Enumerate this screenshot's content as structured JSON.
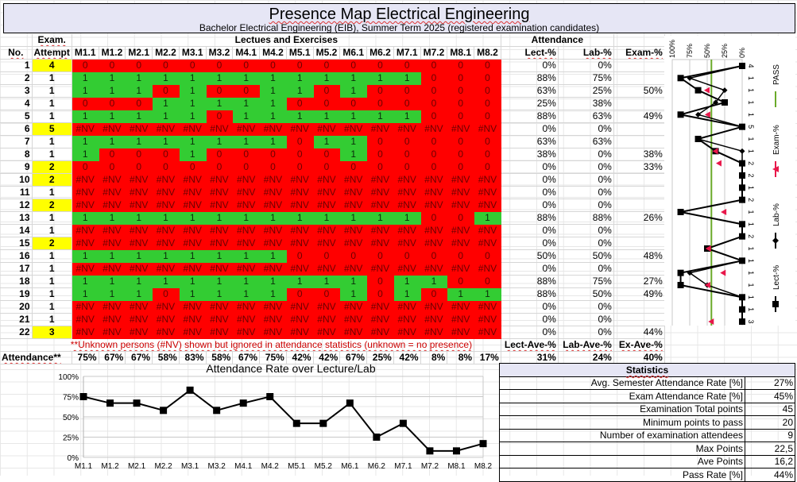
{
  "title": "Presence Map Electrical Engineering",
  "subtitle": "Bachelor Electrical Engineering (EIB), Summer Term 2025 (registered examination candidates)",
  "headers": {
    "no": "No.",
    "exam_top": "Exam.",
    "attempt": "Attempt",
    "group_lectures": "Lectues and Exercises",
    "group_attendance": "Attendance",
    "lect": "Lect-%",
    "lab": "Lab-%",
    "exam": "Exam-%",
    "sessions": [
      "M1.1",
      "M1.2",
      "M2.1",
      "M2.2",
      "M3.1",
      "M3.2",
      "M4.1",
      "M4.2",
      "M5.1",
      "M5.2",
      "M6.1",
      "M6.2",
      "M7.1",
      "M7.2",
      "M8.1",
      "M8.2"
    ]
  },
  "rows": [
    {
      "no": "1",
      "attempt": "4",
      "cells": [
        "0",
        "0",
        "0",
        "0",
        "0",
        "0",
        "0",
        "0",
        "0",
        "0",
        "0",
        "0",
        "0",
        "0",
        "0",
        "0"
      ],
      "lect": "0%",
      "lab": "0%",
      "exam": ""
    },
    {
      "no": "2",
      "attempt": "1",
      "cells": [
        "1",
        "1",
        "1",
        "1",
        "1",
        "1",
        "1",
        "1",
        "1",
        "1",
        "1",
        "1",
        "1",
        "0",
        "0",
        "0"
      ],
      "lect": "88%",
      "lab": "75%",
      "exam": ""
    },
    {
      "no": "3",
      "attempt": "1",
      "cells": [
        "1",
        "1",
        "1",
        "0",
        "1",
        "0",
        "0",
        "1",
        "1",
        "0",
        "1",
        "0",
        "0",
        "0",
        "0",
        "0"
      ],
      "lect": "63%",
      "lab": "25%",
      "exam": "50%"
    },
    {
      "no": "4",
      "attempt": "1",
      "cells": [
        "0",
        "0",
        "0",
        "1",
        "1",
        "1",
        "1",
        "1",
        "0",
        "0",
        "0",
        "0",
        "0",
        "0",
        "0",
        "0"
      ],
      "lect": "25%",
      "lab": "38%",
      "exam": ""
    },
    {
      "no": "5",
      "attempt": "1",
      "cells": [
        "1",
        "1",
        "1",
        "1",
        "1",
        "0",
        "1",
        "1",
        "1",
        "1",
        "1",
        "1",
        "1",
        "0",
        "0",
        "0"
      ],
      "lect": "88%",
      "lab": "63%",
      "exam": "49%"
    },
    {
      "no": "6",
      "attempt": "5",
      "cells": [
        "#NV",
        "#NV",
        "#NV",
        "#NV",
        "#NV",
        "#NV",
        "#NV",
        "#NV",
        "#NV",
        "#NV",
        "#NV",
        "#NV",
        "#NV",
        "#NV",
        "#NV",
        "#NV"
      ],
      "lect": "0%",
      "lab": "0%",
      "exam": ""
    },
    {
      "no": "7",
      "attempt": "1",
      "cells": [
        "1",
        "1",
        "1",
        "1",
        "1",
        "1",
        "1",
        "1",
        "0",
        "1",
        "1",
        "0",
        "0",
        "0",
        "0",
        "0"
      ],
      "lect": "63%",
      "lab": "63%",
      "exam": ""
    },
    {
      "no": "8",
      "attempt": "1",
      "cells": [
        "1",
        "0",
        "0",
        "0",
        "1",
        "0",
        "0",
        "0",
        "0",
        "0",
        "1",
        "0",
        "0",
        "0",
        "0",
        "0"
      ],
      "lect": "38%",
      "lab": "0%",
      "exam": "38%"
    },
    {
      "no": "9",
      "attempt": "2",
      "cells": [
        "0",
        "0",
        "0",
        "0",
        "0",
        "0",
        "0",
        "0",
        "0",
        "0",
        "0",
        "0",
        "0",
        "0",
        "0",
        "0"
      ],
      "lect": "0%",
      "lab": "0%",
      "exam": "33%"
    },
    {
      "no": "10",
      "attempt": "2",
      "cells": [
        "#NV",
        "#NV",
        "#NV",
        "#NV",
        "#NV",
        "#NV",
        "#NV",
        "#NV",
        "#NV",
        "#NV",
        "#NV",
        "#NV",
        "#NV",
        "#NV",
        "#NV",
        "#NV"
      ],
      "lect": "0%",
      "lab": "0%",
      "exam": ""
    },
    {
      "no": "11",
      "attempt": "1",
      "cells": [
        "#NV",
        "#NV",
        "#NV",
        "#NV",
        "#NV",
        "#NV",
        "#NV",
        "#NV",
        "#NV",
        "#NV",
        "#NV",
        "#NV",
        "#NV",
        "#NV",
        "#NV",
        "#NV"
      ],
      "lect": "0%",
      "lab": "0%",
      "exam": ""
    },
    {
      "no": "12",
      "attempt": "2",
      "cells": [
        "#NV",
        "#NV",
        "#NV",
        "#NV",
        "#NV",
        "#NV",
        "#NV",
        "#NV",
        "#NV",
        "#NV",
        "#NV",
        "#NV",
        "#NV",
        "#NV",
        "#NV",
        "#NV"
      ],
      "lect": "0%",
      "lab": "0%",
      "exam": ""
    },
    {
      "no": "13",
      "attempt": "1",
      "cells": [
        "1",
        "1",
        "1",
        "1",
        "1",
        "1",
        "1",
        "1",
        "1",
        "1",
        "1",
        "1",
        "1",
        "0",
        "0",
        "1"
      ],
      "lect": "88%",
      "lab": "88%",
      "exam": "26%"
    },
    {
      "no": "14",
      "attempt": "1",
      "cells": [
        "#NV",
        "#NV",
        "#NV",
        "#NV",
        "#NV",
        "#NV",
        "#NV",
        "#NV",
        "#NV",
        "#NV",
        "#NV",
        "#NV",
        "#NV",
        "#NV",
        "#NV",
        "#NV"
      ],
      "lect": "0%",
      "lab": "0%",
      "exam": ""
    },
    {
      "no": "15",
      "attempt": "2",
      "cells": [
        "#NV",
        "#NV",
        "#NV",
        "#NV",
        "#NV",
        "#NV",
        "#NV",
        "#NV",
        "#NV",
        "#NV",
        "#NV",
        "#NV",
        "#NV",
        "#NV",
        "#NV",
        "#NV"
      ],
      "lect": "0%",
      "lab": "0%",
      "exam": ""
    },
    {
      "no": "16",
      "attempt": "1",
      "cells": [
        "1",
        "1",
        "1",
        "1",
        "1",
        "1",
        "1",
        "1",
        "0",
        "0",
        "0",
        "0",
        "0",
        "0",
        "0",
        "0"
      ],
      "lect": "50%",
      "lab": "50%",
      "exam": "48%"
    },
    {
      "no": "17",
      "attempt": "1",
      "cells": [
        "#NV",
        "#NV",
        "#NV",
        "#NV",
        "#NV",
        "#NV",
        "#NV",
        "#NV",
        "#NV",
        "#NV",
        "#NV",
        "#NV",
        "#NV",
        "#NV",
        "#NV",
        "#NV"
      ],
      "lect": "0%",
      "lab": "0%",
      "exam": ""
    },
    {
      "no": "18",
      "attempt": "1",
      "cells": [
        "1",
        "1",
        "1",
        "1",
        "1",
        "1",
        "1",
        "1",
        "1",
        "1",
        "1",
        "0",
        "1",
        "1",
        "0",
        "0"
      ],
      "lect": "88%",
      "lab": "75%",
      "exam": "27%"
    },
    {
      "no": "19",
      "attempt": "1",
      "cells": [
        "1",
        "1",
        "1",
        "0",
        "1",
        "1",
        "1",
        "1",
        "0",
        "0",
        "1",
        "0",
        "1",
        "0",
        "1",
        "1"
      ],
      "lect": "88%",
      "lab": "50%",
      "exam": "49%"
    },
    {
      "no": "20",
      "attempt": "1",
      "cells": [
        "#NV",
        "#NV",
        "#NV",
        "#NV",
        "#NV",
        "#NV",
        "#NV",
        "#NV",
        "#NV",
        "#NV",
        "#NV",
        "#NV",
        "#NV",
        "#NV",
        "#NV",
        "#NV"
      ],
      "lect": "0%",
      "lab": "0%",
      "exam": ""
    },
    {
      "no": "21",
      "attempt": "1",
      "cells": [
        "#NV",
        "#NV",
        "#NV",
        "#NV",
        "#NV",
        "#NV",
        "#NV",
        "#NV",
        "#NV",
        "#NV",
        "#NV",
        "#NV",
        "#NV",
        "#NV",
        "#NV",
        "#NV"
      ],
      "lect": "0%",
      "lab": "0%",
      "exam": ""
    },
    {
      "no": "22",
      "attempt": "3",
      "cells": [
        "#NV",
        "#NV",
        "#NV",
        "#NV",
        "#NV",
        "#NV",
        "#NV",
        "#NV",
        "#NV",
        "#NV",
        "#NV",
        "#NV",
        "#NV",
        "#NV",
        "#NV",
        "#NV"
      ],
      "lect": "0%",
      "lab": "0%",
      "exam": "44%"
    }
  ],
  "footer": {
    "note": "**Unknown persons (#NV) shown but ignored in attendance statistics (unknown = no presence)",
    "lect_ave_label": "Lect-Ave-%",
    "lab_ave_label": "Lab-Ave-%",
    "ex_ave_label": "Ex-Ave-%",
    "attendance_label": "Attendance**",
    "attendance": [
      "75%",
      "67%",
      "67%",
      "58%",
      "83%",
      "58%",
      "67%",
      "75%",
      "42%",
      "42%",
      "67%",
      "25%",
      "42%",
      "8%",
      "8%",
      "17%"
    ],
    "lect_ave": "31%",
    "lab_ave": "24%",
    "ex_ave": "40%"
  },
  "colors": {
    "present": "#33cc33",
    "absent": "#ff0000",
    "highlight": "#ffff00",
    "title_bg": "#e6e6f5",
    "exam_marker": "#e8174a",
    "pass_line": "#6aaa2a"
  },
  "chart_data": [
    {
      "type": "line",
      "title": "Attendance Rate over Lecture/Lab",
      "categories": [
        "M1.1",
        "M1.2",
        "M2.1",
        "M2.2",
        "M3.1",
        "M3.2",
        "M4.1",
        "M4.2",
        "M5.1",
        "M5.2",
        "M6.1",
        "M6.2",
        "M7.1",
        "M7.2",
        "M8.1",
        "M8.2"
      ],
      "values": [
        75,
        67,
        67,
        58,
        83,
        58,
        67,
        75,
        42,
        42,
        67,
        25,
        42,
        8,
        8,
        17
      ],
      "ylim": [
        0,
        100
      ],
      "yticks": [
        "0%",
        "25%",
        "50%",
        "75%",
        "100%"
      ],
      "xlabel": "",
      "ylabel": "",
      "grid": true
    },
    {
      "type": "line",
      "orientation": "rotated",
      "categories": [
        "4",
        "1",
        "1",
        "1",
        "1",
        "5",
        "1",
        "1",
        "2",
        "2",
        "1",
        "2",
        "1",
        "1",
        "2",
        "1",
        "1",
        "1",
        "1",
        "1",
        "1",
        "3"
      ],
      "xticks": [
        "100%",
        "75%",
        "50%",
        "25%",
        "0%"
      ],
      "xlim": [
        0,
        100
      ],
      "series": [
        {
          "name": "Lect-%",
          "values": [
            0,
            88,
            63,
            25,
            88,
            0,
            63,
            38,
            0,
            0,
            0,
            0,
            88,
            0,
            0,
            50,
            0,
            88,
            88,
            0,
            0,
            0
          ]
        },
        {
          "name": "Lab-%",
          "values": [
            0,
            75,
            25,
            38,
            63,
            0,
            63,
            0,
            0,
            0,
            0,
            0,
            88,
            0,
            0,
            50,
            0,
            75,
            50,
            0,
            0,
            0
          ]
        },
        {
          "name": "Exam-%",
          "values": [
            null,
            null,
            50,
            null,
            49,
            null,
            null,
            38,
            33,
            null,
            null,
            null,
            26,
            null,
            null,
            48,
            null,
            27,
            49,
            null,
            null,
            44
          ]
        },
        {
          "name": "PASS",
          "values": [
            44,
            44,
            44,
            44,
            44,
            44,
            44,
            44,
            44,
            44,
            44,
            44,
            44,
            44,
            44,
            44,
            44,
            44,
            44,
            44,
            44,
            44
          ]
        }
      ],
      "legend": [
        "PASS",
        "Exam-%",
        "Lab-%",
        "Lect-%"
      ],
      "legend_position": "right"
    }
  ],
  "statistics": {
    "title": "Statistics",
    "items": [
      {
        "label": "Avg. Semester Attendance Rate [%]",
        "value": "27%"
      },
      {
        "label": "Exam Attendance Rate [%]",
        "value": "45%"
      },
      {
        "label": "Examination Total points",
        "value": "45"
      },
      {
        "label": "Minimum points to pass",
        "value": "20"
      },
      {
        "label": "Number of examination attendees",
        "value": "9"
      },
      {
        "label": "Max Points",
        "value": "22,5"
      },
      {
        "label": "Ave Points",
        "value": "16,2"
      },
      {
        "label": "Pass Rate [%]",
        "value": "44%"
      }
    ]
  }
}
